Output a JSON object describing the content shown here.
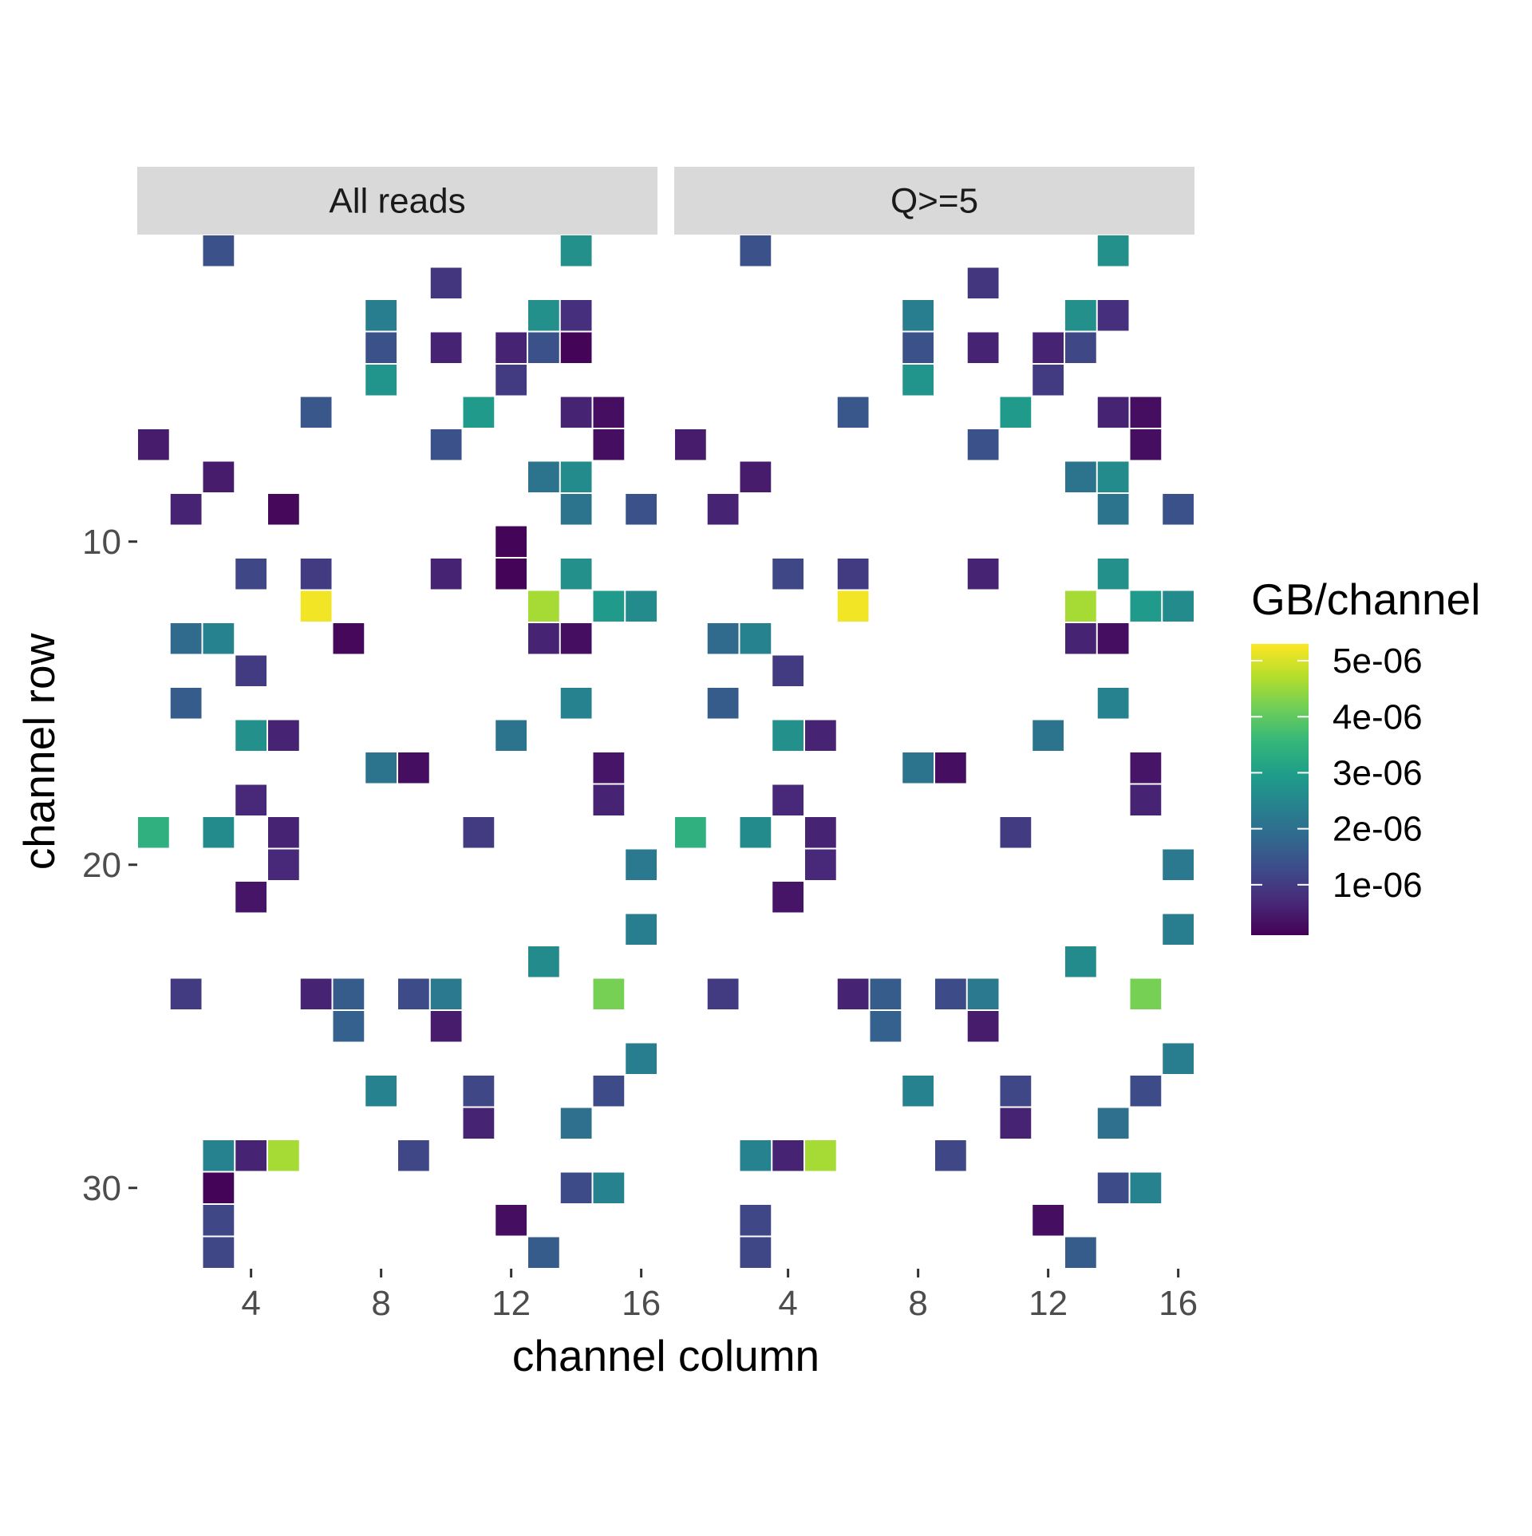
{
  "chart_data": {
    "type": "heatmap",
    "xlabel": "channel column",
    "ylabel": "channel row",
    "x_ticks": [
      4,
      8,
      12,
      16
    ],
    "y_ticks": [
      10,
      20,
      30
    ],
    "xlim": [
      1,
      16
    ],
    "ylim": [
      32,
      1
    ],
    "legend": {
      "title": "GB/channel",
      "position": "right",
      "ticks": [
        "5e-06",
        "4e-06",
        "3e-06",
        "2e-06",
        "1e-06"
      ],
      "tick_values": [
        5e-06,
        4e-06,
        3e-06,
        2e-06,
        1e-06
      ],
      "range": [
        1e-07,
        5.3e-06
      ]
    },
    "colormap": [
      "#440154",
      "#482878",
      "#3e4a89",
      "#31688e",
      "#26828e",
      "#1f9e89",
      "#35b779",
      "#6ece58",
      "#b5de2b",
      "#fde725"
    ],
    "panels": [
      {
        "label": "All reads",
        "cells": [
          {
            "col": 3,
            "row": 1,
            "value": 1.4e-06
          },
          {
            "col": 14,
            "row": 1,
            "value": 2.7e-06
          },
          {
            "col": 10,
            "row": 2,
            "value": 9e-07
          },
          {
            "col": 8,
            "row": 3,
            "value": 2.3e-06
          },
          {
            "col": 13,
            "row": 3,
            "value": 2.7e-06
          },
          {
            "col": 14,
            "row": 3,
            "value": 8e-07
          },
          {
            "col": 8,
            "row": 4,
            "value": 1.4e-06
          },
          {
            "col": 10,
            "row": 4,
            "value": 6e-07
          },
          {
            "col": 12,
            "row": 4,
            "value": 6e-07
          },
          {
            "col": 13,
            "row": 4,
            "value": 1.4e-06
          },
          {
            "col": 14,
            "row": 4,
            "value": 1.5e-07
          },
          {
            "col": 8,
            "row": 5,
            "value": 2.8e-06
          },
          {
            "col": 12,
            "row": 5,
            "value": 1e-06
          },
          {
            "col": 6,
            "row": 6,
            "value": 1.5e-06
          },
          {
            "col": 11,
            "row": 6,
            "value": 2.9e-06
          },
          {
            "col": 14,
            "row": 6,
            "value": 6e-07
          },
          {
            "col": 15,
            "row": 6,
            "value": 3e-07
          },
          {
            "col": 1,
            "row": 7,
            "value": 5e-07
          },
          {
            "col": 10,
            "row": 7,
            "value": 1.4e-06
          },
          {
            "col": 15,
            "row": 7,
            "value": 3e-07
          },
          {
            "col": 3,
            "row": 8,
            "value": 5e-07
          },
          {
            "col": 13,
            "row": 8,
            "value": 2.1e-06
          },
          {
            "col": 14,
            "row": 8,
            "value": 2.6e-06
          },
          {
            "col": 2,
            "row": 9,
            "value": 6e-07
          },
          {
            "col": 5,
            "row": 9,
            "value": 2e-07
          },
          {
            "col": 14,
            "row": 9,
            "value": 2.1e-06
          },
          {
            "col": 16,
            "row": 9,
            "value": 1.4e-06
          },
          {
            "col": 12,
            "row": 10,
            "value": 1.5e-07
          },
          {
            "col": 4,
            "row": 11,
            "value": 1.2e-06
          },
          {
            "col": 6,
            "row": 11,
            "value": 1e-06
          },
          {
            "col": 10,
            "row": 11,
            "value": 6e-07
          },
          {
            "col": 12,
            "row": 11,
            "value": 1.5e-07
          },
          {
            "col": 14,
            "row": 11,
            "value": 2.7e-06
          },
          {
            "col": 6,
            "row": 12,
            "value": 5.2e-06
          },
          {
            "col": 13,
            "row": 12,
            "value": 4.6e-06
          },
          {
            "col": 15,
            "row": 12,
            "value": 2.9e-06
          },
          {
            "col": 16,
            "row": 12,
            "value": 2.6e-06
          },
          {
            "col": 2,
            "row": 13,
            "value": 1.9e-06
          },
          {
            "col": 3,
            "row": 13,
            "value": 2.4e-06
          },
          {
            "col": 7,
            "row": 13,
            "value": 2e-07
          },
          {
            "col": 13,
            "row": 13,
            "value": 6e-07
          },
          {
            "col": 14,
            "row": 13,
            "value": 3e-07
          },
          {
            "col": 4,
            "row": 14,
            "value": 1e-06
          },
          {
            "col": 2,
            "row": 15,
            "value": 1.6e-06
          },
          {
            "col": 14,
            "row": 15,
            "value": 2.4e-06
          },
          {
            "col": 4,
            "row": 16,
            "value": 2.7e-06
          },
          {
            "col": 5,
            "row": 16,
            "value": 6e-07
          },
          {
            "col": 12,
            "row": 16,
            "value": 2.1e-06
          },
          {
            "col": 8,
            "row": 17,
            "value": 2.1e-06
          },
          {
            "col": 9,
            "row": 17,
            "value": 3e-07
          },
          {
            "col": 15,
            "row": 17,
            "value": 4e-07
          },
          {
            "col": 4,
            "row": 18,
            "value": 7e-07
          },
          {
            "col": 15,
            "row": 18,
            "value": 6e-07
          },
          {
            "col": 1,
            "row": 19,
            "value": 3.4e-06
          },
          {
            "col": 3,
            "row": 19,
            "value": 2.6e-06
          },
          {
            "col": 5,
            "row": 19,
            "value": 6e-07
          },
          {
            "col": 11,
            "row": 19,
            "value": 1e-06
          },
          {
            "col": 5,
            "row": 20,
            "value": 7e-07
          },
          {
            "col": 16,
            "row": 20,
            "value": 2.2e-06
          },
          {
            "col": 4,
            "row": 21,
            "value": 4e-07
          },
          {
            "col": 16,
            "row": 22,
            "value": 2.3e-06
          },
          {
            "col": 13,
            "row": 23,
            "value": 2.6e-06
          },
          {
            "col": 2,
            "row": 24,
            "value": 1e-06
          },
          {
            "col": 6,
            "row": 24,
            "value": 6e-07
          },
          {
            "col": 7,
            "row": 24,
            "value": 1.6e-06
          },
          {
            "col": 9,
            "row": 24,
            "value": 1.3e-06
          },
          {
            "col": 10,
            "row": 24,
            "value": 2.2e-06
          },
          {
            "col": 15,
            "row": 24,
            "value": 4.2e-06
          },
          {
            "col": 7,
            "row": 25,
            "value": 1.7e-06
          },
          {
            "col": 10,
            "row": 25,
            "value": 5e-07
          },
          {
            "col": 16,
            "row": 26,
            "value": 2.3e-06
          },
          {
            "col": 8,
            "row": 27,
            "value": 2.4e-06
          },
          {
            "col": 11,
            "row": 27,
            "value": 1.2e-06
          },
          {
            "col": 15,
            "row": 27,
            "value": 1.3e-06
          },
          {
            "col": 11,
            "row": 28,
            "value": 6e-07
          },
          {
            "col": 14,
            "row": 28,
            "value": 2e-06
          },
          {
            "col": 3,
            "row": 29,
            "value": 2.4e-06
          },
          {
            "col": 4,
            "row": 29,
            "value": 6e-07
          },
          {
            "col": 5,
            "row": 29,
            "value": 4.6e-06
          },
          {
            "col": 9,
            "row": 29,
            "value": 1.2e-06
          },
          {
            "col": 3,
            "row": 30,
            "value": 1.5e-07
          },
          {
            "col": 14,
            "row": 30,
            "value": 1.3e-06
          },
          {
            "col": 15,
            "row": 30,
            "value": 2.4e-06
          },
          {
            "col": 3,
            "row": 31,
            "value": 1.2e-06
          },
          {
            "col": 12,
            "row": 31,
            "value": 3e-07
          },
          {
            "col": 3,
            "row": 32,
            "value": 1.2e-06
          },
          {
            "col": 13,
            "row": 32,
            "value": 1.6e-06
          }
        ]
      },
      {
        "label": "Q>=5",
        "cells": [
          {
            "col": 3,
            "row": 1,
            "value": 1.4e-06
          },
          {
            "col": 14,
            "row": 1,
            "value": 2.7e-06
          },
          {
            "col": 10,
            "row": 2,
            "value": 9e-07
          },
          {
            "col": 8,
            "row": 3,
            "value": 2.3e-06
          },
          {
            "col": 13,
            "row": 3,
            "value": 2.7e-06
          },
          {
            "col": 14,
            "row": 3,
            "value": 8e-07
          },
          {
            "col": 8,
            "row": 4,
            "value": 1.4e-06
          },
          {
            "col": 10,
            "row": 4,
            "value": 6e-07
          },
          {
            "col": 12,
            "row": 4,
            "value": 6e-07
          },
          {
            "col": 13,
            "row": 4,
            "value": 1.2e-06
          },
          {
            "col": 8,
            "row": 5,
            "value": 2.8e-06
          },
          {
            "col": 12,
            "row": 5,
            "value": 1e-06
          },
          {
            "col": 6,
            "row": 6,
            "value": 1.5e-06
          },
          {
            "col": 11,
            "row": 6,
            "value": 2.9e-06
          },
          {
            "col": 14,
            "row": 6,
            "value": 6e-07
          },
          {
            "col": 15,
            "row": 6,
            "value": 3e-07
          },
          {
            "col": 1,
            "row": 7,
            "value": 5e-07
          },
          {
            "col": 10,
            "row": 7,
            "value": 1.4e-06
          },
          {
            "col": 15,
            "row": 7,
            "value": 3e-07
          },
          {
            "col": 3,
            "row": 8,
            "value": 5e-07
          },
          {
            "col": 13,
            "row": 8,
            "value": 2.1e-06
          },
          {
            "col": 14,
            "row": 8,
            "value": 2.6e-06
          },
          {
            "col": 2,
            "row": 9,
            "value": 6e-07
          },
          {
            "col": 14,
            "row": 9,
            "value": 2.1e-06
          },
          {
            "col": 16,
            "row": 9,
            "value": 1.4e-06
          },
          {
            "col": 4,
            "row": 11,
            "value": 1.2e-06
          },
          {
            "col": 6,
            "row": 11,
            "value": 1e-06
          },
          {
            "col": 10,
            "row": 11,
            "value": 6e-07
          },
          {
            "col": 14,
            "row": 11,
            "value": 2.7e-06
          },
          {
            "col": 6,
            "row": 12,
            "value": 5.2e-06
          },
          {
            "col": 13,
            "row": 12,
            "value": 4.6e-06
          },
          {
            "col": 15,
            "row": 12,
            "value": 2.9e-06
          },
          {
            "col": 16,
            "row": 12,
            "value": 2.6e-06
          },
          {
            "col": 2,
            "row": 13,
            "value": 1.9e-06
          },
          {
            "col": 3,
            "row": 13,
            "value": 2.4e-06
          },
          {
            "col": 13,
            "row": 13,
            "value": 6e-07
          },
          {
            "col": 14,
            "row": 13,
            "value": 3e-07
          },
          {
            "col": 4,
            "row": 14,
            "value": 1e-06
          },
          {
            "col": 2,
            "row": 15,
            "value": 1.6e-06
          },
          {
            "col": 14,
            "row": 15,
            "value": 2.4e-06
          },
          {
            "col": 4,
            "row": 16,
            "value": 2.7e-06
          },
          {
            "col": 5,
            "row": 16,
            "value": 6e-07
          },
          {
            "col": 12,
            "row": 16,
            "value": 2.1e-06
          },
          {
            "col": 8,
            "row": 17,
            "value": 2.1e-06
          },
          {
            "col": 9,
            "row": 17,
            "value": 3e-07
          },
          {
            "col": 15,
            "row": 17,
            "value": 4e-07
          },
          {
            "col": 4,
            "row": 18,
            "value": 7e-07
          },
          {
            "col": 15,
            "row": 18,
            "value": 6e-07
          },
          {
            "col": 1,
            "row": 19,
            "value": 3.4e-06
          },
          {
            "col": 3,
            "row": 19,
            "value": 2.6e-06
          },
          {
            "col": 5,
            "row": 19,
            "value": 6e-07
          },
          {
            "col": 11,
            "row": 19,
            "value": 1e-06
          },
          {
            "col": 5,
            "row": 20,
            "value": 7e-07
          },
          {
            "col": 16,
            "row": 20,
            "value": 2.2e-06
          },
          {
            "col": 4,
            "row": 21,
            "value": 4e-07
          },
          {
            "col": 16,
            "row": 22,
            "value": 2.3e-06
          },
          {
            "col": 13,
            "row": 23,
            "value": 2.6e-06
          },
          {
            "col": 2,
            "row": 24,
            "value": 1e-06
          },
          {
            "col": 6,
            "row": 24,
            "value": 6e-07
          },
          {
            "col": 7,
            "row": 24,
            "value": 1.6e-06
          },
          {
            "col": 9,
            "row": 24,
            "value": 1.3e-06
          },
          {
            "col": 10,
            "row": 24,
            "value": 2.2e-06
          },
          {
            "col": 15,
            "row": 24,
            "value": 4.2e-06
          },
          {
            "col": 7,
            "row": 25,
            "value": 1.7e-06
          },
          {
            "col": 10,
            "row": 25,
            "value": 5e-07
          },
          {
            "col": 16,
            "row": 26,
            "value": 2.3e-06
          },
          {
            "col": 8,
            "row": 27,
            "value": 2.4e-06
          },
          {
            "col": 11,
            "row": 27,
            "value": 1.2e-06
          },
          {
            "col": 15,
            "row": 27,
            "value": 1.3e-06
          },
          {
            "col": 11,
            "row": 28,
            "value": 6e-07
          },
          {
            "col": 14,
            "row": 28,
            "value": 2e-06
          },
          {
            "col": 3,
            "row": 29,
            "value": 2.4e-06
          },
          {
            "col": 4,
            "row": 29,
            "value": 6e-07
          },
          {
            "col": 5,
            "row": 29,
            "value": 4.6e-06
          },
          {
            "col": 9,
            "row": 29,
            "value": 1.2e-06
          },
          {
            "col": 14,
            "row": 30,
            "value": 1.3e-06
          },
          {
            "col": 15,
            "row": 30,
            "value": 2.4e-06
          },
          {
            "col": 3,
            "row": 31,
            "value": 1.2e-06
          },
          {
            "col": 12,
            "row": 31,
            "value": 3e-07
          },
          {
            "col": 3,
            "row": 32,
            "value": 1.2e-06
          },
          {
            "col": 13,
            "row": 32,
            "value": 1.6e-06
          }
        ]
      }
    ]
  }
}
